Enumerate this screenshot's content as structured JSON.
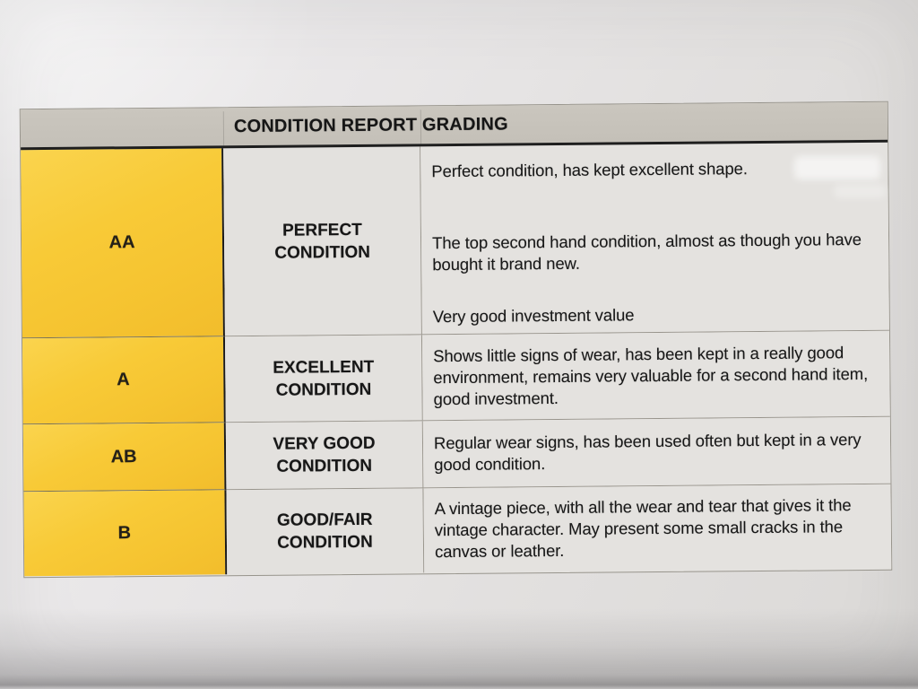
{
  "table": {
    "title": "CONDITION REPORT GRADING",
    "rows": [
      {
        "grade": "AA",
        "condition": "PERFECT CONDITION",
        "description_paragraphs": [
          "Perfect condition, has kept excellent shape.",
          "The top second hand condition, almost as though you have bought it brand new.",
          "Very good investment value"
        ]
      },
      {
        "grade": "A",
        "condition": "EXCELLENT CONDITION",
        "description_paragraphs": [
          "Shows little signs of wear, has been kept in a really good environment, remains very valuable for a second hand item, good investment."
        ]
      },
      {
        "grade": "AB",
        "condition": "VERY GOOD CONDITION",
        "description_paragraphs": [
          "Regular wear signs, has been used often but kept in a very good condition."
        ]
      },
      {
        "grade": "B",
        "condition": "GOOD/FAIR CONDITION",
        "description_paragraphs": [
          "A vintage piece, with all the wear and tear that gives it the vintage character. May present some small cracks in the canvas or leather."
        ]
      }
    ],
    "colors": {
      "grade_column_bg": "#F7C837",
      "header_bg": "#C5C1B9",
      "cell_bg": "#E4E2DF",
      "page_bg": "#E8E6E7",
      "text": "#1B1B1B",
      "header_rule": "#1E1E1E"
    }
  }
}
